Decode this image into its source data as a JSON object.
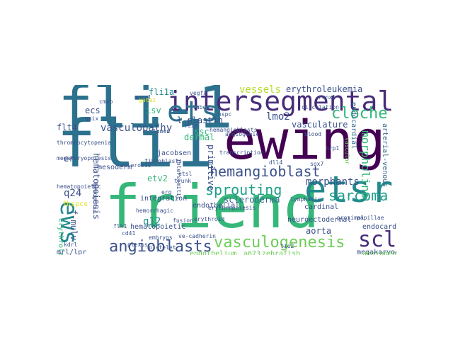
{
  "palette": {
    "navy": "#472c7a",
    "indigo": "#3b518b",
    "purple": "#481a6c",
    "darkpurple": "#440154",
    "blue": "#31688e",
    "steel": "#2c728e",
    "teal": "#23898e",
    "tealgreen": "#1f9e89",
    "green": "#35b779",
    "lightgreen": "#6ece58",
    "lime": "#b5de2b",
    "yellow": "#dde318",
    "gray": "#414487"
  },
  "words": [
    {
      "text": "fli-1",
      "color": "#2c728e"
    },
    {
      "text": "fli1",
      "color": "#2c728e"
    },
    {
      "text": "ewing",
      "color": "#440154"
    },
    {
      "text": "friend",
      "color": "#35b779"
    },
    {
      "text": "etsrp",
      "color": "#23898e"
    },
    {
      "text": "intersegmental",
      "color": "#472c7a"
    },
    {
      "text": "ets",
      "color": "#2c728e"
    },
    {
      "text": "cloche",
      "color": "#35b779"
    },
    {
      "text": "hemangioblast",
      "color": "#3b518b"
    },
    {
      "text": "sprouting",
      "color": "#1f9e89"
    },
    {
      "text": "scleroderma",
      "color": "#31688e"
    },
    {
      "text": "sarcoma",
      "color": "#1f9e89"
    },
    {
      "text": "scl",
      "color": "#472c7a"
    },
    {
      "text": "vasculogenesis",
      "color": "#6ece58"
    },
    {
      "text": "angioblasts",
      "color": "#3b518b"
    },
    {
      "text": "ews",
      "color": "#23898e"
    },
    {
      "text": "vasculopathy",
      "color": "#3b518b"
    },
    {
      "text": "erythroleukemia",
      "color": "#3b518b"
    },
    {
      "text": "vessels",
      "color": "#b5de2b"
    },
    {
      "text": "lmo2",
      "color": "#3b518b"
    },
    {
      "text": "vasculature",
      "color": "#3b518b"
    },
    {
      "text": "morphants",
      "color": "#3b518b"
    },
    {
      "text": "morpholino",
      "color": "#35b779"
    },
    {
      "text": "fli1a",
      "color": "#23898e"
    },
    {
      "text": "ecs",
      "color": "#3b518b"
    },
    {
      "text": "isv",
      "color": "#35b779"
    },
    {
      "text": "flt4",
      "color": "#3b518b"
    },
    {
      "text": "l-plastin",
      "color": "#3b518b"
    },
    {
      "text": "ssc",
      "color": "#35b779"
    },
    {
      "text": "dermal",
      "color": "#35b779"
    },
    {
      "text": "etv2",
      "color": "#35b779"
    },
    {
      "text": "q12",
      "color": "#23898e"
    },
    {
      "text": "q24",
      "color": "#3b518b"
    },
    {
      "text": "f-mulv",
      "color": "#3b518b"
    },
    {
      "text": "aorta",
      "color": "#3b518b"
    },
    {
      "text": "endocardium",
      "color": "#3b518b"
    },
    {
      "text": "primitive",
      "color": "#3b518b"
    },
    {
      "text": "cardinal",
      "color": "#3b518b"
    },
    {
      "text": "hematopoiesis",
      "color": "#3b518b"
    },
    {
      "text": "hematopoietic",
      "color": "#3b518b"
    },
    {
      "text": "megakaryocytes",
      "color": "#3b518b"
    },
    {
      "text": "angiogenesis",
      "color": "#6ece58"
    },
    {
      "text": "endothelium",
      "color": "#6ece58"
    },
    {
      "text": "a673",
      "color": "#6ece58"
    },
    {
      "text": "zebrafish",
      "color": "#6ece58"
    },
    {
      "text": "neuroectodermal",
      "color": "#3b518b"
    },
    {
      "text": "endocardial",
      "color": "#31688e"
    },
    {
      "text": "arterial-venous",
      "color": "#31688e"
    },
    {
      "text": "mesoderm",
      "color": "#3b518b"
    },
    {
      "text": "jacobsen",
      "color": "#3b518b"
    },
    {
      "text": "integration",
      "color": "#3b518b"
    },
    {
      "text": "endothelial",
      "color": "#3b518b"
    },
    {
      "text": "erythroleukemic",
      "color": "#35b779"
    },
    {
      "text": "mrl/lpr",
      "color": "#3b518b"
    },
    {
      "text": "hspc",
      "color": "#3b518b"
    },
    {
      "text": "angiogenic",
      "color": "#3b518b"
    },
    {
      "text": "vein",
      "color": "#3b518b"
    },
    {
      "text": "trunk",
      "color": "#3b518b"
    },
    {
      "text": "mural",
      "color": "#3b518b"
    },
    {
      "text": "gpix",
      "color": "#3b518b"
    },
    {
      "text": "kdrl",
      "color": "#3b518b"
    },
    {
      "text": "gata1",
      "color": "#dde318"
    },
    {
      "text": "hemogenic",
      "color": "#3b518b"
    },
    {
      "text": "etsl",
      "color": "#3b518b"
    },
    {
      "text": "fusion",
      "color": "#3b518b"
    },
    {
      "text": "ve-cadherin",
      "color": "#3b518b"
    },
    {
      "text": "platelet",
      "color": "#3b518b"
    },
    {
      "text": "embryos",
      "color": "#3b518b"
    },
    {
      "text": "circulation",
      "color": "#3b518b"
    },
    {
      "text": "erythropoiesis",
      "color": "#3b518b"
    },
    {
      "text": "hemangioblasts",
      "color": "#3b518b"
    },
    {
      "text": "vascular",
      "color": "#6ece58"
    },
    {
      "text": "er",
      "color": "#3b518b"
    },
    {
      "text": "fhspcs",
      "color": "#dde318"
    },
    {
      "text": "thrombocytopenia",
      "color": "#3b518b"
    },
    {
      "text": "megakaryopoiesis",
      "color": "#3b518b"
    },
    {
      "text": "hemorrhagic",
      "color": "#3b518b"
    },
    {
      "text": "proximal",
      "color": "#3b518b"
    },
    {
      "text": "papillae",
      "color": "#3b518b"
    },
    {
      "text": "plexus",
      "color": "#3b518b"
    },
    {
      "text": "cd41",
      "color": "#3b518b"
    },
    {
      "text": "hematopoietic",
      "color": "#3b518b"
    },
    {
      "text": "lymphatic",
      "color": "#3b518b"
    },
    {
      "text": "sclerosis",
      "color": "#3b518b"
    },
    {
      "text": "intersomitic",
      "color": "#3b518b"
    },
    {
      "text": "erythroid",
      "color": "#3b518b"
    },
    {
      "text": "transcription",
      "color": "#3b518b"
    },
    {
      "text": "fibroblasts",
      "color": "#3b518b"
    },
    {
      "text": "vegfa",
      "color": "#3b518b"
    },
    {
      "text": "tubes",
      "color": "#3b518b"
    },
    {
      "text": "lumen",
      "color": "#3b518b"
    },
    {
      "text": "blood",
      "color": "#3b518b"
    },
    {
      "text": "runx1",
      "color": "#3b518b"
    },
    {
      "text": "cmyb",
      "color": "#3b518b"
    },
    {
      "text": "dll4",
      "color": "#3b518b"
    },
    {
      "text": "flk1",
      "color": "#3b518b"
    },
    {
      "text": "tie2",
      "color": "#3b518b"
    },
    {
      "text": "nrp1",
      "color": "#3b518b"
    },
    {
      "text": "sox7",
      "color": "#3b518b"
    },
    {
      "text": "erg",
      "color": "#3b518b"
    }
  ]
}
